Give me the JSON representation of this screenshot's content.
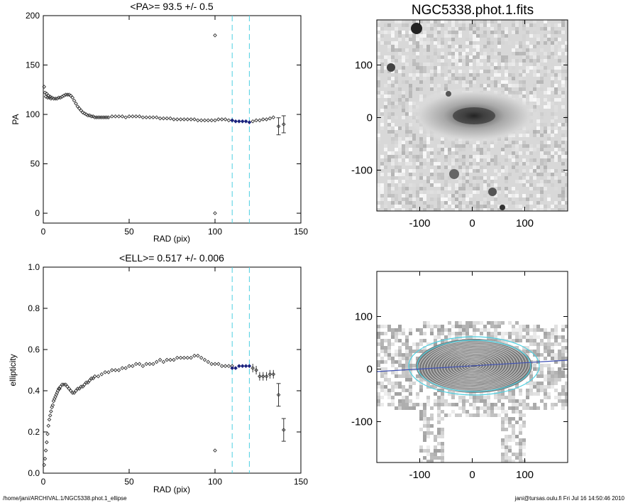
{
  "figure_title": "NGC5338.phot.1.fits",
  "footer": {
    "left": "/home/jani/ARCHIVAL.1/NGC5338.phot.1_ellipse",
    "right": "jani@tursas.oulu.fi  Fri Jul 16 14:50:46 2010"
  },
  "colors": {
    "points": "#333333",
    "highlight": "#1a237e",
    "vline": "#4dd0e1",
    "fit_line": "#3f51b5"
  },
  "image_axes": {
    "xticks": [
      "-100",
      "0",
      "100"
    ],
    "yticks": [
      "100",
      "0",
      "-100"
    ]
  },
  "chart_data": [
    {
      "type": "scatter",
      "title": "<PA>=  93.5 +/-   0.5",
      "xlabel": "RAD (pix)",
      "ylabel": "PA",
      "xlim": [
        0,
        150
      ],
      "ylim": [
        -10,
        200
      ],
      "xticks": [
        "0",
        "50",
        "100",
        "150"
      ],
      "yticks": [
        "0",
        "50",
        "100",
        "150",
        "200"
      ],
      "vlines": [
        110,
        120
      ],
      "series": [
        {
          "x": [
            0.5,
            1,
            1.5,
            2,
            2.5,
            3,
            3.5,
            4,
            4.5,
            5,
            6,
            7,
            8,
            9,
            10,
            11,
            12,
            13,
            14,
            15,
            16,
            17,
            18,
            19,
            20,
            21,
            22,
            23,
            24,
            25,
            26,
            27,
            28,
            29,
            30,
            31,
            32,
            33,
            34,
            35,
            36,
            37,
            38,
            40,
            42,
            44,
            46,
            48,
            50,
            52,
            54,
            56,
            58,
            60,
            62,
            64,
            66,
            68,
            70,
            72,
            74,
            76,
            78,
            80,
            82,
            84,
            86,
            88,
            90,
            92,
            94,
            96,
            98,
            100,
            102,
            104,
            106,
            108,
            110
          ],
          "y": [
            128,
            122,
            118,
            121,
            117,
            119,
            117,
            118,
            116,
            117,
            116,
            116,
            116,
            117,
            117,
            118,
            119,
            120,
            120,
            120,
            119,
            117,
            114,
            111,
            108,
            106,
            104,
            102,
            101,
            100,
            99,
            99,
            98,
            98,
            97,
            97,
            97,
            97,
            97,
            97,
            97,
            97,
            97,
            98,
            98,
            98,
            98,
            97,
            98,
            98,
            98,
            98,
            97,
            97,
            97,
            97,
            97,
            96,
            96,
            96,
            96,
            95,
            95,
            95,
            95,
            95,
            95,
            95,
            94,
            94,
            94,
            94,
            94,
            94,
            95,
            95,
            95,
            94,
            94
          ]
        },
        {
          "x": [
            110,
            112,
            114,
            116,
            118,
            120
          ],
          "y": [
            94,
            93,
            93,
            93,
            93,
            92
          ]
        },
        {
          "x": [
            122,
            124,
            126,
            128,
            130,
            132,
            134
          ],
          "y": [
            93,
            94,
            94,
            95,
            95,
            96,
            97
          ]
        },
        {
          "x": [
            100,
            100,
            137,
            140
          ],
          "y": [
            180,
            0,
            88,
            90
          ]
        }
      ]
    },
    {
      "type": "scatter",
      "title": "<ELL>= 0.517 +/-   0.006",
      "xlabel": "RAD (pix)",
      "ylabel": "ellipticity",
      "xlim": [
        0,
        150
      ],
      "ylim": [
        0.0,
        1.0
      ],
      "xticks": [
        "0",
        "50",
        "100",
        "150"
      ],
      "yticks": [
        "0.0",
        "0.2",
        "0.4",
        "0.6",
        "0.8",
        "1.0"
      ],
      "vlines": [
        110,
        120
      ],
      "series": [
        {
          "x": [
            0.5,
            1,
            1.5,
            2,
            2.5,
            3,
            3.5,
            4,
            4.5,
            5,
            5.5,
            6,
            6.5,
            7,
            7.5,
            8,
            8.5,
            9,
            9.5,
            10,
            11,
            12,
            13,
            14,
            15,
            16,
            17,
            18,
            19,
            20,
            21,
            22,
            23,
            24,
            25,
            26,
            27,
            28,
            29,
            30,
            32,
            34,
            36,
            38,
            40,
            42,
            44,
            46,
            48,
            50,
            52,
            54,
            56,
            58,
            60,
            62,
            64,
            66,
            68,
            70,
            72,
            74,
            76,
            78,
            80,
            82,
            84,
            86,
            88,
            90,
            92,
            94,
            96,
            98,
            100,
            102,
            104,
            106,
            108,
            110
          ],
          "y": [
            0.04,
            0.07,
            0.11,
            0.15,
            0.19,
            0.23,
            0.26,
            0.28,
            0.3,
            0.32,
            0.33,
            0.35,
            0.36,
            0.37,
            0.38,
            0.39,
            0.4,
            0.41,
            0.41,
            0.42,
            0.43,
            0.43,
            0.43,
            0.42,
            0.41,
            0.4,
            0.39,
            0.39,
            0.4,
            0.41,
            0.41,
            0.42,
            0.42,
            0.43,
            0.44,
            0.44,
            0.45,
            0.46,
            0.46,
            0.47,
            0.47,
            0.48,
            0.49,
            0.49,
            0.5,
            0.5,
            0.5,
            0.51,
            0.51,
            0.52,
            0.52,
            0.53,
            0.53,
            0.52,
            0.53,
            0.53,
            0.53,
            0.54,
            0.55,
            0.54,
            0.55,
            0.55,
            0.55,
            0.56,
            0.56,
            0.56,
            0.56,
            0.56,
            0.57,
            0.57,
            0.56,
            0.55,
            0.54,
            0.53,
            0.53,
            0.53,
            0.52,
            0.52,
            0.52,
            0.52
          ]
        },
        {
          "x": [
            110,
            112,
            114,
            116,
            118,
            120
          ],
          "y": [
            0.51,
            0.51,
            0.52,
            0.52,
            0.52,
            0.52
          ]
        },
        {
          "x": [
            122,
            124,
            126,
            128,
            130,
            132,
            134
          ],
          "y": [
            0.51,
            0.5,
            0.47,
            0.47,
            0.47,
            0.48,
            0.48
          ]
        },
        {
          "x": [
            100,
            137,
            140
          ],
          "y": [
            0.11,
            0.38,
            0.21
          ]
        }
      ]
    }
  ]
}
